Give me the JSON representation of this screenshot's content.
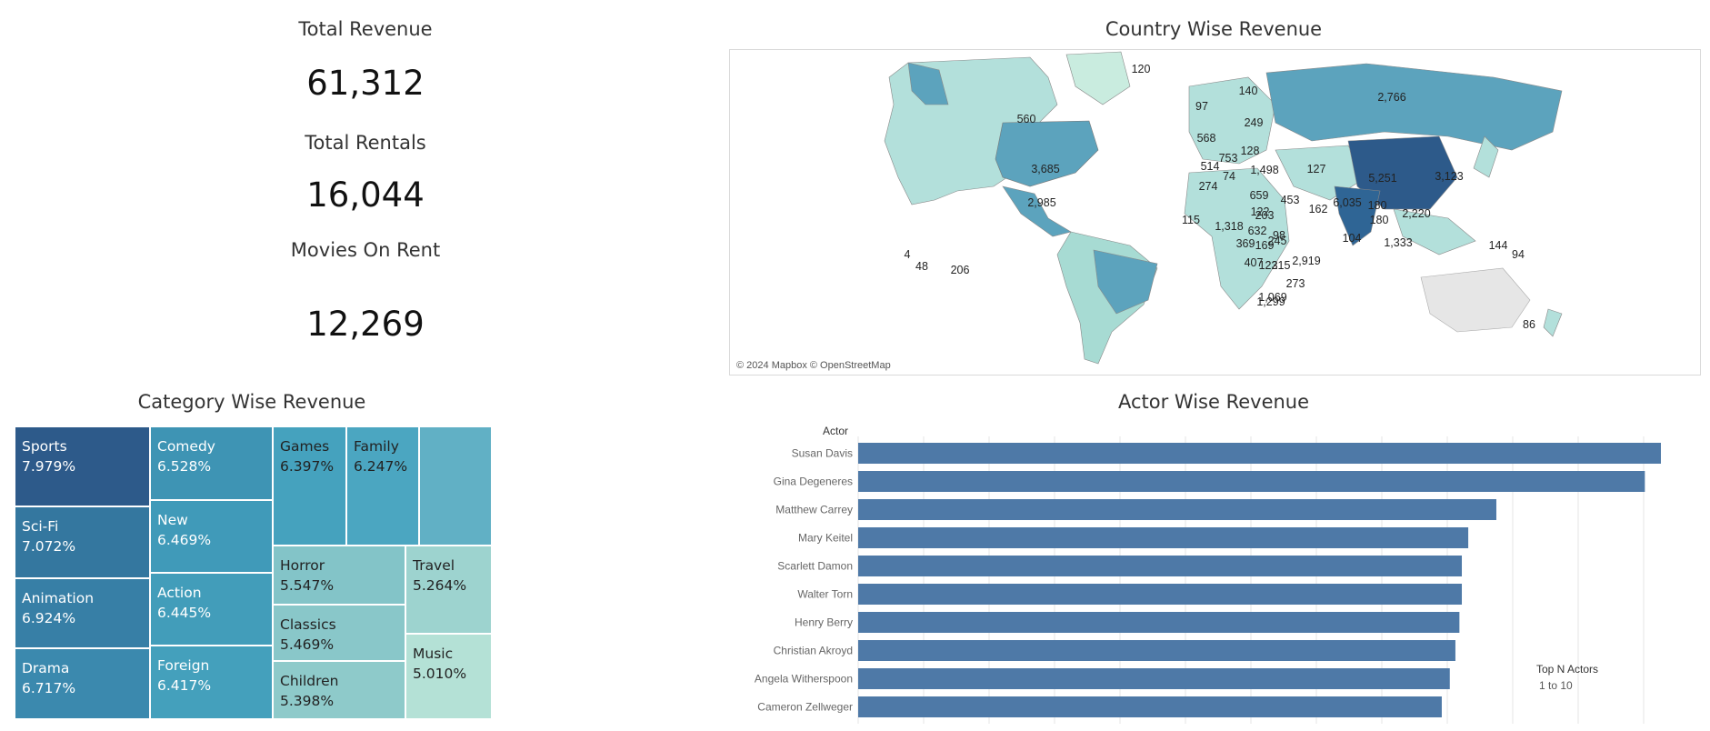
{
  "kpis": {
    "total_revenue": {
      "title": "Total Revenue",
      "value": "61,312"
    },
    "total_rentals": {
      "title": "Total Rentals",
      "value": "16,044"
    },
    "movies_on_rent": {
      "title": "Movies On Rent",
      "value": "12,269"
    }
  },
  "map": {
    "title": "Country Wise Revenue",
    "attribution": "© 2024 Mapbox © OpenStreetMap",
    "labels": [
      "120",
      "140",
      "97",
      "249",
      "560",
      "2,766",
      "568",
      "128",
      "753",
      "1,498",
      "127",
      "514",
      "3,685",
      "5,251",
      "3,123",
      "74",
      "274",
      "659",
      "453",
      "2,985",
      "6,035",
      "180",
      "122",
      "162",
      "203",
      "115",
      "1,318",
      "180",
      "2,220",
      "632",
      "98",
      "104",
      "245",
      "369",
      "169",
      "2,919",
      "1,333",
      "144",
      "4",
      "48",
      "206",
      "407",
      "122",
      "315",
      "94",
      "273",
      "1,069",
      "1,299",
      "86"
    ]
  },
  "treemap": {
    "title": "Category Wise Revenue",
    "tiles": [
      {
        "name": "Sports",
        "pct": "7.979%",
        "color": "#2d5a8a"
      },
      {
        "name": "Sci-Fi",
        "pct": "7.072%",
        "color": "#34779f"
      },
      {
        "name": "Animation",
        "pct": "6.924%",
        "color": "#377fa6"
      },
      {
        "name": "Drama",
        "pct": "6.717%",
        "color": "#3b89ae"
      },
      {
        "name": "Comedy",
        "pct": "6.528%",
        "color": "#3e94b4"
      },
      {
        "name": "New",
        "pct": "6.469%",
        "color": "#409ab9"
      },
      {
        "name": "Action",
        "pct": "6.445%",
        "color": "#429dba"
      },
      {
        "name": "Foreign",
        "pct": "6.417%",
        "color": "#44a0bc"
      },
      {
        "name": "Games",
        "pct": "6.397%",
        "color": "#45a2be"
      },
      {
        "name": "Family",
        "pct": "6.247%",
        "color": "#4ba6c1"
      },
      {
        "name": "",
        "pct": "",
        "color": "#61b0c5"
      },
      {
        "name": "Horror",
        "pct": "5.547%",
        "color": "#83c4c8"
      },
      {
        "name": "Classics",
        "pct": "5.469%",
        "color": "#89c7c9"
      },
      {
        "name": "Children",
        "pct": "5.398%",
        "color": "#8ecaca"
      },
      {
        "name": "Travel",
        "pct": "5.264%",
        "color": "#9dd3cf"
      },
      {
        "name": "Music",
        "pct": "5.010%",
        "color": "#b4e1d6"
      }
    ]
  },
  "actor_chart": {
    "title": "Actor Wise Revenue",
    "axis_title": "Actor",
    "filter_title": "Top N Actors",
    "filter_value": "1 to 10"
  },
  "chart_data": {
    "type": "bar",
    "orientation": "horizontal",
    "categories": [
      "Susan Davis",
      "Gina Degeneres",
      "Matthew Carrey",
      "Mary Keitel",
      "Scarlett Damon",
      "Walter Torn",
      "Henry Berry",
      "Christian Akroyd",
      "Angela Witherspoon",
      "Cameron Zellweger"
    ],
    "values": [
      1.0,
      0.98,
      0.795,
      0.76,
      0.752,
      0.752,
      0.749,
      0.744,
      0.737,
      0.727
    ],
    "color": "#4e79a7",
    "grid": true
  }
}
